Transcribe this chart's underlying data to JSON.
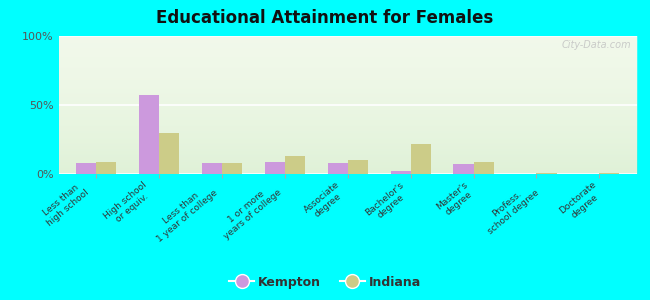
{
  "title": "Educational Attainment for Females",
  "categories": [
    "Less than\nhigh school",
    "High school\nor equiv.",
    "Less than\n1 year of college",
    "1 or more\nyears of college",
    "Associate\ndegree",
    "Bachelor's\ndegree",
    "Master's\ndegree",
    "Profess.\nschool degree",
    "Doctorate\ndegree"
  ],
  "kempton_values": [
    8.0,
    57.0,
    8.0,
    9.0,
    8.0,
    2.0,
    7.0,
    0.3,
    0.0
  ],
  "indiana_values": [
    9.0,
    30.0,
    8.0,
    13.0,
    10.0,
    22.0,
    9.0,
    1.0,
    0.5
  ],
  "kempton_color": "#cc99dd",
  "indiana_color": "#cccc88",
  "ylim": [
    0,
    100
  ],
  "yticks": [
    0,
    50,
    100
  ],
  "ytick_labels": [
    "0%",
    "50%",
    "100%"
  ],
  "bg_color": "#e8f2d8",
  "outer_bg": "#00ffff",
  "watermark": "City-Data.com",
  "legend_kempton": "Kempton",
  "legend_indiana": "Indiana"
}
